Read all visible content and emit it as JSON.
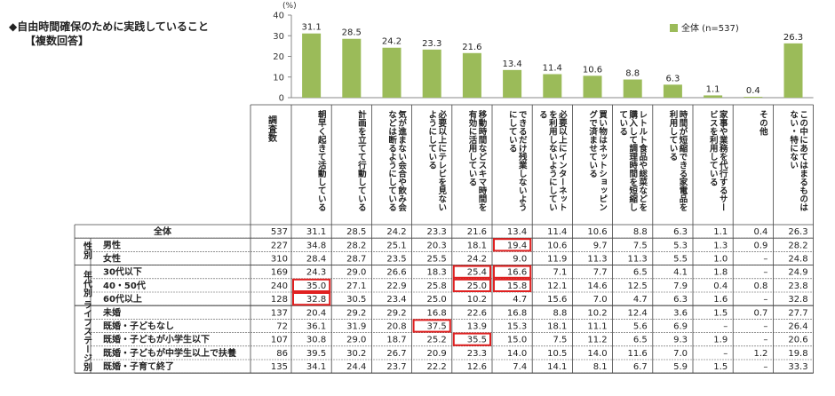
{
  "heading": {
    "title": "◆自由時間確保のために実践していること",
    "subtitle": "【複数回答】"
  },
  "chart_data": {
    "type": "bar",
    "y_unit": "(%)",
    "ylim": [
      0,
      40
    ],
    "yticks": [
      0,
      10,
      20,
      30,
      40
    ],
    "legend": "全体 (n=537)",
    "legend_position": "top-right",
    "categories": [
      "朝早く起きて活動している",
      "計画を立てて行動している",
      "気が進まない会合や飲み会などは断るようにしている",
      "必要以上にテレビを見ないようにしている",
      "移動時間などスキマ時間を有効に活用している",
      "できるだけ残業しないようにしている",
      "必要以上にインターネットを利用しないようにしている",
      "買い物はネットショッピングで済ませている",
      "レトルト食品や総菜などを購入して調理時間を短縮している",
      "時間が短縮できる家電品を利用している",
      "家事や業務を代行するサービスを利用している",
      "その他",
      "この中にあてはまるものはない・特にない"
    ],
    "series": [
      {
        "name": "全体",
        "color": "#9bbb59",
        "values": [
          31.1,
          28.5,
          24.2,
          23.3,
          21.6,
          13.4,
          11.4,
          10.6,
          8.8,
          6.3,
          1.1,
          0.4,
          26.3
        ]
      }
    ]
  },
  "table": {
    "n_header": "調査数",
    "rows": [
      {
        "group": "",
        "label": "全体",
        "n": "537",
        "values": [
          "31.1",
          "28.5",
          "24.2",
          "23.3",
          "21.6",
          "13.4",
          "11.4",
          "10.6",
          "8.8",
          "6.3",
          "1.1",
          "0.4",
          "26.3"
        ]
      },
      {
        "group": "性別",
        "label": "男性",
        "n": "227",
        "values": [
          "34.8",
          "28.2",
          "25.1",
          "20.3",
          "18.1",
          "19.4",
          "10.6",
          "9.7",
          "7.5",
          "5.3",
          "1.3",
          "0.9",
          "28.2"
        ]
      },
      {
        "group": "性別",
        "label": "女性",
        "n": "310",
        "values": [
          "28.4",
          "28.7",
          "23.5",
          "25.5",
          "24.2",
          "9.0",
          "11.9",
          "11.3",
          "11.3",
          "5.5",
          "1.0",
          "–",
          "24.8"
        ]
      },
      {
        "group": "年代別",
        "label": "30代以下",
        "n": "169",
        "values": [
          "24.3",
          "29.0",
          "26.6",
          "18.3",
          "25.4",
          "16.6",
          "7.1",
          "7.7",
          "6.5",
          "4.1",
          "1.8",
          "–",
          "24.9"
        ]
      },
      {
        "group": "年代別",
        "label": "40・50代",
        "n": "240",
        "values": [
          "35.0",
          "27.1",
          "22.9",
          "25.8",
          "25.0",
          "15.8",
          "12.1",
          "14.6",
          "12.5",
          "7.9",
          "0.4",
          "0.8",
          "23.8"
        ]
      },
      {
        "group": "年代別",
        "label": "60代以上",
        "n": "128",
        "values": [
          "32.8",
          "30.5",
          "23.4",
          "25.0",
          "10.2",
          "4.7",
          "15.6",
          "7.0",
          "4.7",
          "6.3",
          "1.6",
          "–",
          "32.8"
        ]
      },
      {
        "group": "ライフステージ別",
        "label": "未婚",
        "n": "137",
        "values": [
          "20.4",
          "29.2",
          "29.2",
          "16.8",
          "22.6",
          "16.8",
          "8.8",
          "10.2",
          "12.4",
          "3.6",
          "1.5",
          "0.7",
          "27.7"
        ]
      },
      {
        "group": "ライフステージ別",
        "label": "既婚・子どもなし",
        "n": "72",
        "values": [
          "36.1",
          "31.9",
          "20.8",
          "37.5",
          "13.9",
          "15.3",
          "18.1",
          "11.1",
          "5.6",
          "6.9",
          "–",
          "–",
          "26.4"
        ]
      },
      {
        "group": "ライフステージ別",
        "label": "既婚・子どもが小学生以下",
        "n": "107",
        "values": [
          "30.8",
          "29.0",
          "18.7",
          "25.2",
          "35.5",
          "15.0",
          "7.5",
          "11.2",
          "6.5",
          "9.3",
          "1.9",
          "–",
          "20.6"
        ]
      },
      {
        "group": "ライフステージ別",
        "label": "既婚・子どもが中学生以上で扶養",
        "n": "86",
        "values": [
          "39.5",
          "30.2",
          "26.7",
          "20.9",
          "23.3",
          "14.0",
          "10.5",
          "14.0",
          "11.6",
          "7.0",
          "–",
          "1.2",
          "19.8"
        ]
      },
      {
        "group": "ライフステージ別",
        "label": "既婚・子育て終了",
        "n": "135",
        "values": [
          "34.1",
          "24.4",
          "23.7",
          "22.2",
          "12.6",
          "7.4",
          "14.1",
          "8.1",
          "6.7",
          "5.9",
          "1.5",
          "–",
          "33.3"
        ]
      }
    ],
    "group_labels": {
      "gender": "性別",
      "age": "年代別",
      "life": "ライフステージ別"
    },
    "highlight_color": "#e02020",
    "highlighted_cells": [
      {
        "row": 1,
        "col": 5
      },
      {
        "row": 4,
        "col": 0
      },
      {
        "row": 5,
        "col": 0
      },
      {
        "row": 3,
        "col": 4
      },
      {
        "row": 4,
        "col": 4
      },
      {
        "row": 3,
        "col": 5
      },
      {
        "row": 4,
        "col": 5
      },
      {
        "row": 7,
        "col": 3
      },
      {
        "row": 8,
        "col": 4
      }
    ]
  }
}
